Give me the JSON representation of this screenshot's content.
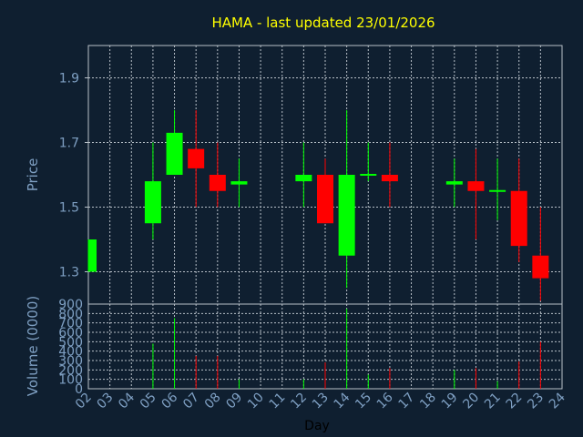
{
  "chart_data": {
    "type": "candlestick",
    "title": "HAMA - last updated 23/01/2026",
    "price_ylabel": "Price",
    "volume_ylabel": "Volume (0000)",
    "xlabel": "Day",
    "price_ylim": [
      1.2,
      2.0
    ],
    "price_ticks": [
      "1.9",
      "1.7",
      "1.5",
      "1.3"
    ],
    "price_tick_values": [
      1.9,
      1.7,
      1.5,
      1.3
    ],
    "volume_ylim": [
      0,
      900
    ],
    "volume_ticks": [
      "900",
      "800",
      "700",
      "600",
      "500",
      "400",
      "300",
      "200",
      "100",
      "0"
    ],
    "volume_tick_values": [
      900,
      800,
      700,
      600,
      500,
      400,
      300,
      200,
      100,
      0
    ],
    "x_ticks": [
      "02",
      "03",
      "04",
      "05",
      "06",
      "07",
      "08",
      "09",
      "10",
      "11",
      "12",
      "13",
      "14",
      "15",
      "16",
      "17",
      "18",
      "19",
      "20",
      "21",
      "22",
      "23",
      "24"
    ],
    "grid": true,
    "up_color": "#00ff00",
    "down_color": "#ff0000",
    "background": "#0f1f30",
    "candles": [
      {
        "day": "02",
        "open": 1.3,
        "high": 1.4,
        "low": 1.3,
        "close": 1.4,
        "volume": 0
      },
      {
        "day": "05",
        "open": 1.45,
        "high": 1.7,
        "low": 1.4,
        "close": 1.58,
        "volume": 480
      },
      {
        "day": "06",
        "open": 1.6,
        "high": 1.8,
        "low": 1.6,
        "close": 1.73,
        "volume": 750
      },
      {
        "day": "07",
        "open": 1.68,
        "high": 1.8,
        "low": 1.5,
        "close": 1.62,
        "volume": 350
      },
      {
        "day": "08",
        "open": 1.6,
        "high": 1.7,
        "low": 1.5,
        "close": 1.55,
        "volume": 350
      },
      {
        "day": "09",
        "open": 1.57,
        "high": 1.65,
        "low": 1.5,
        "close": 1.58,
        "volume": 100
      },
      {
        "day": "12",
        "open": 1.58,
        "high": 1.7,
        "low": 1.5,
        "close": 1.6,
        "volume": 100
      },
      {
        "day": "13",
        "open": 1.6,
        "high": 1.65,
        "low": 1.45,
        "close": 1.45,
        "volume": 280
      },
      {
        "day": "14",
        "open": 1.35,
        "high": 1.8,
        "low": 1.25,
        "close": 1.6,
        "volume": 850
      },
      {
        "day": "15",
        "open": 1.6,
        "high": 1.7,
        "low": 1.58,
        "close": 1.6,
        "volume": 150
      },
      {
        "day": "16",
        "open": 1.6,
        "high": 1.7,
        "low": 1.5,
        "close": 1.58,
        "volume": 220
      },
      {
        "day": "19",
        "open": 1.57,
        "high": 1.65,
        "low": 1.5,
        "close": 1.58,
        "volume": 200
      },
      {
        "day": "20",
        "open": 1.58,
        "high": 1.68,
        "low": 1.4,
        "close": 1.55,
        "volume": 220
      },
      {
        "day": "21",
        "open": 1.55,
        "high": 1.65,
        "low": 1.46,
        "close": 1.55,
        "volume": 80
      },
      {
        "day": "22",
        "open": 1.55,
        "high": 1.65,
        "low": 1.33,
        "close": 1.38,
        "volume": 290
      },
      {
        "day": "23",
        "open": 1.35,
        "high": 1.5,
        "low": 1.21,
        "close": 1.28,
        "volume": 500
      }
    ]
  }
}
